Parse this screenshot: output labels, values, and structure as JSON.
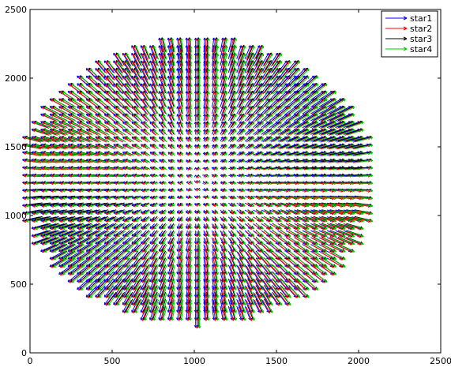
{
  "chart_data": {
    "type": "quiver",
    "title": "",
    "xlabel": "",
    "ylabel": "",
    "xlim": [
      0,
      2500
    ],
    "ylim": [
      0,
      2500
    ],
    "xticks": [
      0,
      500,
      1000,
      1500,
      2000,
      2500
    ],
    "yticks": [
      0,
      500,
      1000,
      1500,
      2000,
      2500
    ],
    "xtick_labels": [
      "0",
      "500",
      "1000",
      "1500",
      "2000",
      "2500"
    ],
    "ytick_labels": [
      "0",
      "500",
      "1000",
      "1500",
      "2000",
      "2500"
    ],
    "grid": false,
    "legend_position": "top-right",
    "field": {
      "center": [
        1020,
        1250
      ],
      "grid_spacing": 50,
      "radius_x": 1000,
      "radius_y": 960,
      "arrow_scale": 0.11,
      "note_visible": false
    },
    "series": [
      {
        "name": "star1",
        "color": "#0000ff",
        "offset": [
          -7,
          0
        ]
      },
      {
        "name": "star2",
        "color": "#ff0000",
        "offset": [
          -2,
          3
        ]
      },
      {
        "name": "star3",
        "color": "#000000",
        "offset": [
          3,
          -1
        ]
      },
      {
        "name": "star4",
        "color": "#00cc00",
        "offset": [
          7,
          2
        ]
      }
    ]
  }
}
